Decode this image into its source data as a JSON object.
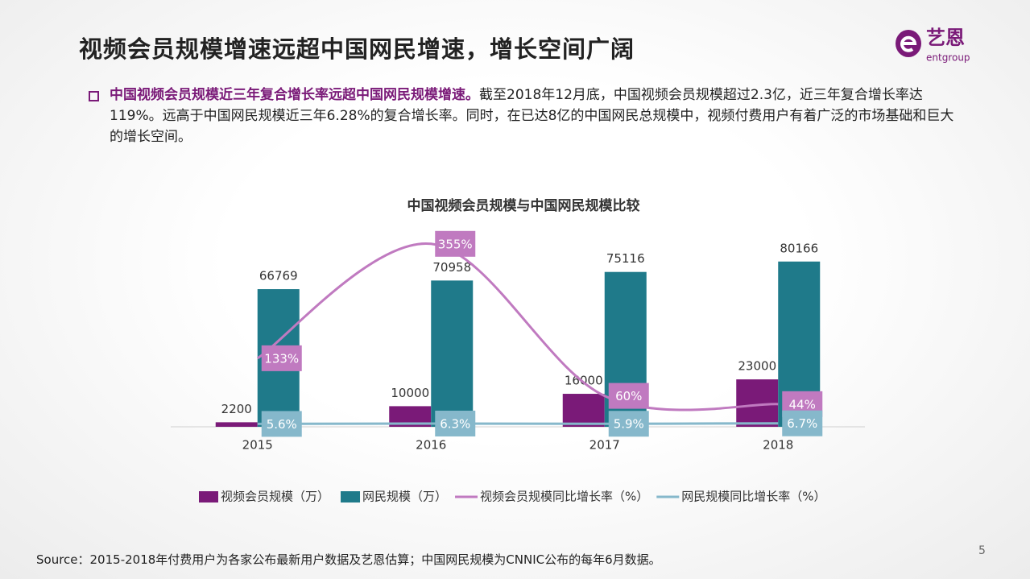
{
  "header": {
    "title": "视频会员规模增速远超中国网民增速，增长空间广阔",
    "logo_cn": "艺恩",
    "logo_en": "entgroup"
  },
  "summary": {
    "bold": "中国视频会员规模近三年复合增长率远超中国网民规模增速。",
    "text": "截至2018年12月底，中国视频会员规模超过2.3亿，近三年复合增长率达119%。远高于中国网民规模近三年6.28%的复合增长率。同时，在已达8亿的中国网民总规模中，视频付费用户有着广泛的市场基础和巨大的增长空间。"
  },
  "chart_data": {
    "type": "bar",
    "title": "中国视频会员规模与中国网民规模比较",
    "categories": [
      "2015",
      "2016",
      "2017",
      "2018"
    ],
    "ylim": [
      0,
      100000
    ],
    "y2lim": [
      0,
      400
    ],
    "series": [
      {
        "name": "视频会员规模（万）",
        "type": "bar",
        "color": "#7a1a78",
        "values": [
          2200,
          10000,
          16000,
          23000
        ]
      },
      {
        "name": "网民规模（万）",
        "type": "bar",
        "color": "#1f7a8a",
        "values": [
          66769,
          70958,
          75116,
          80166
        ]
      },
      {
        "name": "视频会员规模同比增长率（%）",
        "type": "line",
        "axis": "y2",
        "color": "#c07ac0",
        "values": [
          133,
          355,
          60,
          44
        ],
        "value_labels": [
          "133%",
          "355%",
          "60%",
          "44%"
        ]
      },
      {
        "name": "网民规模同比增长率（%）",
        "type": "line",
        "axis": "y2",
        "color": "#86b8cb",
        "values": [
          5.6,
          6.3,
          5.9,
          6.7
        ],
        "value_labels": [
          "5.6%",
          "6.3%",
          "5.9%",
          "6.7%"
        ]
      }
    ]
  },
  "source": "Source：2015-2018年付费用户为各家公布最新用户数据及艺恩估算；中国网民规模为CNNIC公布的每年6月数据。",
  "page_number": 5
}
